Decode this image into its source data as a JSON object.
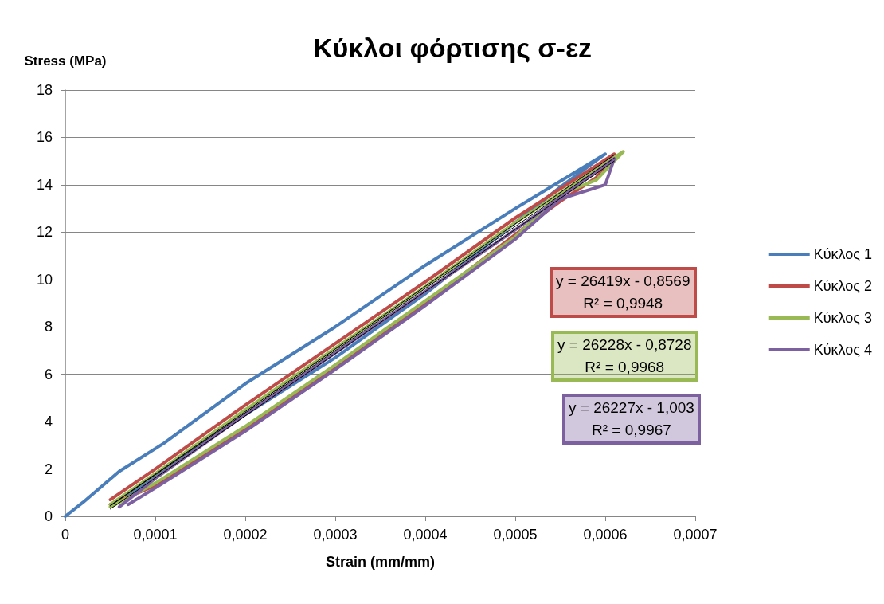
{
  "chart_data": {
    "type": "line",
    "title": "Κύκλοι φόρτισης σ-εz",
    "xlabel": "Strain (mm/mm)",
    "ylabel": "Stress (MPa)",
    "xlim": [
      0,
      0.0007
    ],
    "xticks": [
      0,
      {
        "value": 0.0001,
        "label": "0,0001"
      },
      {
        "value": 0.0002,
        "label": "0,0002"
      },
      {
        "value": 0.0003,
        "label": "0,0003"
      },
      {
        "value": 0.0004,
        "label": "0,0004"
      },
      {
        "value": 0.0005,
        "label": "0,0005"
      },
      {
        "value": 0.0006,
        "label": "0,0006"
      },
      {
        "value": 0.0007,
        "label": "0,0007"
      }
    ],
    "ylim": [
      0,
      18
    ],
    "yticks": [
      0,
      2,
      4,
      6,
      8,
      10,
      12,
      14,
      16,
      18
    ],
    "grid": "y",
    "legend": "right",
    "marker": "none",
    "line_style": "solid",
    "series": [
      {
        "name": "Κύκλος 1",
        "color": "#4a7ebb",
        "x": [
          0,
          2e-05,
          6e-05,
          0.00011,
          0.0002,
          0.0003,
          0.0004,
          0.0005,
          0.0006,
          0.00055,
          0.0005,
          0.0004,
          0.0003,
          0.0002,
          0.00012,
          7e-05
        ],
        "values": [
          0,
          0.6,
          1.9,
          3.1,
          5.6,
          8.0,
          10.6,
          13.0,
          15.3,
          13.9,
          12.4,
          9.4,
          6.7,
          4.3,
          2.2,
          0.9
        ]
      },
      {
        "name": "Κύκλος 2",
        "color": "#be4b48",
        "x": [
          5e-05,
          0.0001,
          0.0002,
          0.0003,
          0.0004,
          0.0005,
          0.00061,
          0.00059,
          0.00055,
          0.0005,
          0.0004,
          0.0003,
          0.0002,
          0.0001,
          5e-05
        ],
        "values": [
          0.7,
          2.0,
          4.7,
          7.3,
          9.9,
          12.6,
          15.3,
          14.3,
          13.3,
          11.9,
          9.0,
          6.3,
          3.7,
          1.3,
          0.5
        ]
      },
      {
        "name": "Κύκλος 3",
        "color": "#98b954",
        "x": [
          5e-05,
          0.0001,
          0.0002,
          0.0003,
          0.0004,
          0.0005,
          0.00062,
          0.00059,
          0.00055,
          0.0005,
          0.0004,
          0.0003,
          0.0002,
          0.0001,
          5e-05
        ],
        "values": [
          0.5,
          1.8,
          4.5,
          7.1,
          9.7,
          12.4,
          15.4,
          14.2,
          13.6,
          11.8,
          9.1,
          6.4,
          3.8,
          1.4,
          0.4
        ]
      },
      {
        "name": "Κύκλος 4",
        "color": "#7d60a0",
        "x": [
          6e-05,
          0.0001,
          0.0002,
          0.0003,
          0.0004,
          0.0005,
          0.00061,
          0.0006,
          0.00055,
          0.0005,
          0.0004,
          0.0003,
          0.0002,
          0.0001,
          7e-05
        ],
        "values": [
          0.4,
          1.6,
          4.3,
          6.9,
          9.5,
          12.1,
          15.1,
          14.0,
          13.4,
          11.7,
          8.9,
          6.2,
          3.6,
          1.2,
          0.5
        ]
      },
      {
        "type": "line",
        "color": "#000000",
        "x": [
          5e-05,
          0.00061
        ],
        "values": [
          0.46,
          15.26
        ]
      },
      {
        "type": "line",
        "color": "#000000",
        "x": [
          5e-05,
          0.00061
        ],
        "values": [
          0.44,
          15.13
        ]
      },
      {
        "type": "line",
        "color": "#000000",
        "x": [
          5e-05,
          0.00061
        ],
        "values": [
          0.31,
          15.0
        ]
      }
    ],
    "annotations": [
      "y = 26419x - 0,8569\nR² = 0,9948",
      "y = 26228x - 0,8728\nR² = 0,9968",
      "y = 26227x - 1,003\nR² = 0,9967"
    ]
  }
}
